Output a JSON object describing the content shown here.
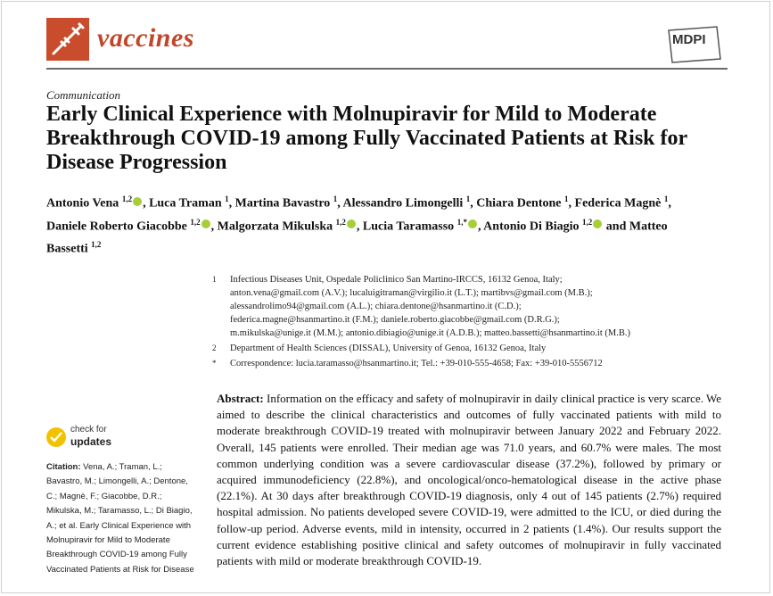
{
  "header": {
    "journal_name": "vaccines",
    "logo_icon": "syringe-icon",
    "publisher": "MDPI"
  },
  "article_type": "Communication",
  "title": "Early Clinical Experience with Molnupiravir for Mild to Moderate Breakthrough COVID-19 among Fully Vaccinated Patients at Risk for Disease Progression",
  "authors": [
    {
      "name": "Antonio Vena",
      "sup": "1,2",
      "orcid": true,
      "sep": ", "
    },
    {
      "name": "Luca Traman",
      "sup": "1",
      "orcid": false,
      "sep": ", "
    },
    {
      "name": "Martina Bavastro",
      "sup": "1",
      "orcid": false,
      "sep": ", "
    },
    {
      "name": "Alessandro Limongelli",
      "sup": "1",
      "orcid": false,
      "sep": ", "
    },
    {
      "name": "Chiara Dentone",
      "sup": "1",
      "orcid": false,
      "sep": ", "
    },
    {
      "name": "Federica Magnè",
      "sup": "1",
      "orcid": false,
      "sep": ", "
    },
    {
      "name": "Daniele Roberto Giacobbe",
      "sup": "1,2",
      "orcid": true,
      "sep": ", "
    },
    {
      "name": "Malgorzata Mikulska",
      "sup": "1,2",
      "orcid": true,
      "sep": ", "
    },
    {
      "name": "Lucia Taramasso",
      "sup": "1,*",
      "orcid": true,
      "sep": ", "
    },
    {
      "name": "Antonio Di Biagio",
      "sup": "1,2",
      "orcid": true,
      "sep": " and "
    },
    {
      "name": "Matteo Bassetti",
      "sup": "1,2",
      "orcid": false,
      "sep": ""
    }
  ],
  "affiliations": [
    {
      "num": "1",
      "lines": [
        "Infectious Diseases Unit, Ospedale Policlinico San Martino-IRCCS, 16132 Genoa, Italy;",
        "anton.vena@gmail.com (A.V.); lucaluigitraman@virgilio.it (L.T.); martibvs@gmail.com (M.B.);",
        "alessandrolimo94@gmail.com (A.L.); chiara.dentone@hsanmartino.it (C.D.);",
        "federica.magne@hsanmartino.it (F.M.); daniele.roberto.giacobbe@gmail.com (D.R.G.);",
        "m.mikulska@unige.it (M.M.); antonio.dibiagio@unige.it (A.D.B.); matteo.bassetti@hsanmartino.it (M.B.)"
      ]
    },
    {
      "num": "2",
      "lines": [
        "Department of Health Sciences (DISSAL), University of Genoa, 16132 Genoa, Italy"
      ]
    },
    {
      "num": "*",
      "lines": [
        "Correspondence: lucia.taramasso@hsanmartino.it; Tel.: +39-010-555-4658; Fax: +39-010-5556712"
      ]
    }
  ],
  "abstract": {
    "label": "Abstract:",
    "text": "Information on the efficacy and safety of molnupiravir in daily clinical practice is very scarce. We aimed to describe the clinical characteristics and outcomes of fully vaccinated patients with mild to moderate breakthrough COVID-19 treated with molnupiravir between January 2022 and February 2022. Overall, 145 patients were enrolled. Their median age was 71.0 years, and 60.7% were males. The most common underlying condition was a severe cardiovascular disease (37.2%), followed by primary or acquired immunodeficiency (22.8%), and oncological/onco-hematological disease in the active phase (22.1%). At 30 days after breakthrough COVID-19 diagnosis, only 4 out of 145 patients (2.7%) required hospital admission. No patients developed severe COVID-19, were admitted to the ICU, or died during the follow-up period. Adverse events, mild in intensity, occurred in 2 patients (1.4%). Our results support the current evidence establishing positive clinical and safety outcomes of molnupiravir in fully vaccinated patients with mild or moderate breakthrough COVID-19."
  },
  "check_updates": {
    "line1": "check for",
    "line2": "updates",
    "icon": "check-mark-icon",
    "color": "#f2c200"
  },
  "citation": {
    "label": "Citation:",
    "text": "Vena, A.; Traman, L.; Bavastro, M.; Limongelli, A.; Dentone, C.; Magnè, F.; Giacobbe, D.R.; Mikulska, M.; Taramasso, L.; Di Biagio, A.; et al. Early Clinical Experience with Molnupiravir for Mild to Moderate Breakthrough COVID-19 among Fully Vaccinated Patients at Risk for Disease"
  },
  "colors": {
    "journal_accent": "#c0472a",
    "orcid": "#a6ce39"
  }
}
